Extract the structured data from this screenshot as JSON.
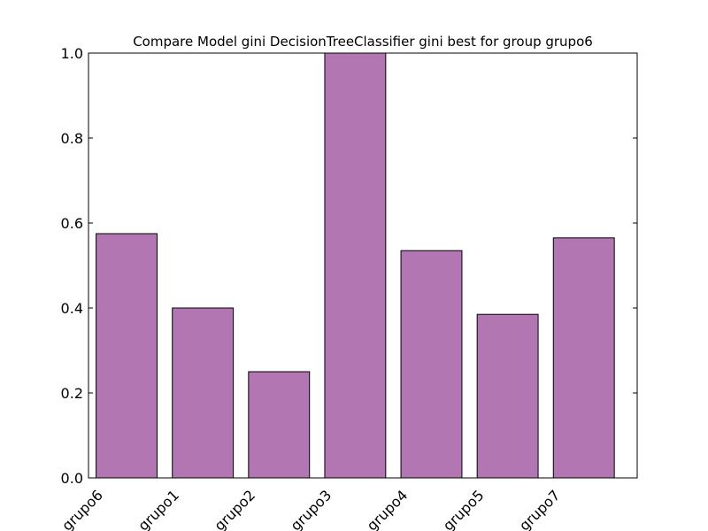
{
  "chart_data": {
    "type": "bar",
    "title": "Compare Model gini DecisionTreeClassifier gini best for group grupo6",
    "xlabel": "",
    "ylabel": "",
    "categories": [
      "grupo6",
      "grupo1",
      "grupo2",
      "grupo3",
      "grupo4",
      "grupo5",
      "grupo7"
    ],
    "values": [
      0.575,
      0.4,
      0.25,
      1.0,
      0.535,
      0.385,
      0.565
    ],
    "ylim": [
      0,
      1.0
    ],
    "yticks": [
      "0.0",
      "0.2",
      "0.4",
      "0.6",
      "0.8",
      "1.0"
    ],
    "bar_color": "#b276b2",
    "edge_color": "#000000",
    "grid": false,
    "legend": "none"
  }
}
